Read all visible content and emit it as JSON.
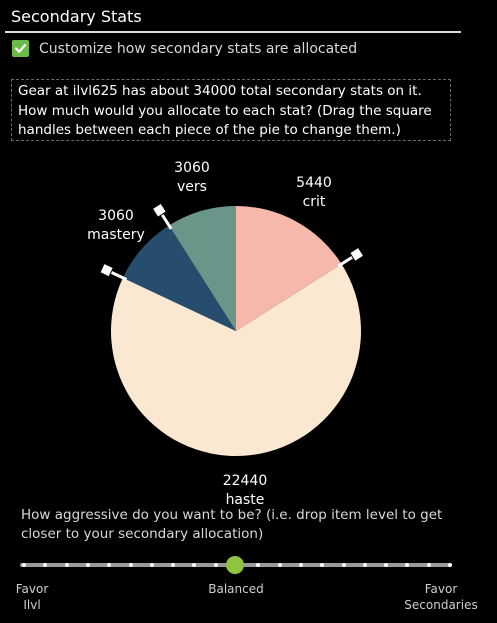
{
  "section": {
    "title": "Secondary Stats"
  },
  "customize": {
    "label": "Customize how secondary stats are allocated",
    "checked": true,
    "color": "#6abb47"
  },
  "info": {
    "line1": "Gear at ilvl625 has about 34000 total secondary stats on it.",
    "line2": "How much would you allocate to each stat? (Drag the square",
    "line3": "handles between each piece of the pie to change them.)"
  },
  "pie": {
    "slices": [
      {
        "stat": "crit",
        "value": "5440",
        "amount": 5440,
        "color": "#f7b8ac"
      },
      {
        "stat": "haste",
        "value": "22440",
        "amount": 22440,
        "color": "#fbe8d3"
      },
      {
        "stat": "mastery",
        "value": "3060",
        "amount": 3060,
        "color": "#264d6e"
      },
      {
        "stat": "vers",
        "value": "3060",
        "amount": 3060,
        "color": "#6a968a"
      }
    ]
  },
  "aggression": {
    "question_line1": "How aggressive do you want to be? (i.e. drop item level to get",
    "question_line2": "closer to your secondary allocation)",
    "labels": {
      "left_line1": "Favor",
      "left_line2": "Ilvl",
      "center": "Balanced",
      "right_line1": "Favor",
      "right_line2": "Secondaries"
    },
    "position": 0.5,
    "thumb_color": "#8ec43f"
  }
}
